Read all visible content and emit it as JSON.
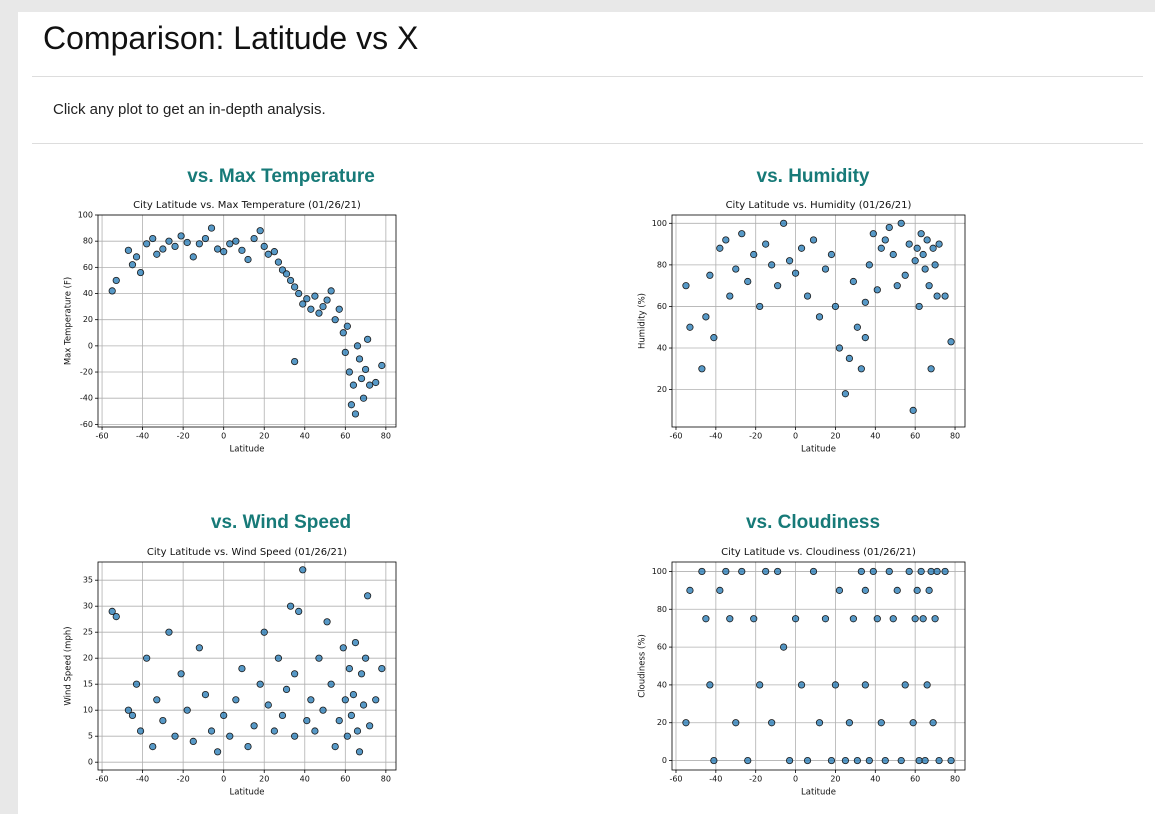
{
  "header": {
    "title": "Comparison: Latitude vs X"
  },
  "intro": "Click any plot to get an in-depth analysis.",
  "chart_data": [
    {
      "type": "scatter",
      "heading": "vs. Max Temperature",
      "title": "City Latitude vs. Max Temperature (01/26/21)",
      "xlabel": "Latitude",
      "ylabel": "Max Temperature (F)",
      "color": "#1f77b4",
      "grid": true,
      "xlim": [
        -62,
        85
      ],
      "xticks": [
        -60,
        -40,
        -20,
        0,
        20,
        40,
        60,
        80
      ],
      "ylim": [
        -62,
        100
      ],
      "yticks": [
        -60,
        -40,
        -20,
        0,
        20,
        40,
        60,
        80,
        100
      ],
      "x": [
        -55,
        -53,
        -47,
        -45,
        -43,
        -41,
        -38,
        -35,
        -33,
        -30,
        -27,
        -24,
        -21,
        -18,
        -15,
        -12,
        -9,
        -6,
        -3,
        0,
        3,
        6,
        9,
        12,
        15,
        18,
        20,
        22,
        25,
        27,
        29,
        31,
        33,
        35,
        35,
        37,
        39,
        41,
        43,
        45,
        47,
        49,
        51,
        53,
        55,
        57,
        59,
        60,
        61,
        62,
        63,
        64,
        65,
        66,
        67,
        68,
        69,
        70,
        71,
        72,
        75,
        78
      ],
      "values": [
        42,
        50,
        73,
        62,
        68,
        56,
        78,
        82,
        70,
        74,
        80,
        76,
        84,
        79,
        68,
        78,
        82,
        90,
        74,
        72,
        78,
        80,
        73,
        66,
        82,
        88,
        76,
        70,
        72,
        64,
        58,
        55,
        50,
        45,
        -12,
        40,
        32,
        36,
        28,
        38,
        25,
        30,
        35,
        42,
        20,
        28,
        10,
        -5,
        15,
        -20,
        -45,
        -30,
        -52,
        0,
        -10,
        -25,
        -40,
        -18,
        5,
        -30,
        -28,
        -15
      ]
    },
    {
      "type": "scatter",
      "heading": "vs. Humidity",
      "title": "City Latitude vs. Humidity (01/26/21)",
      "xlabel": "Latitude",
      "ylabel": "Humidity (%)",
      "color": "#1f77b4",
      "grid": true,
      "xlim": [
        -62,
        85
      ],
      "xticks": [
        -60,
        -40,
        -20,
        0,
        20,
        40,
        60,
        80
      ],
      "ylim": [
        2,
        104
      ],
      "yticks": [
        20,
        40,
        60,
        80,
        100
      ],
      "x": [
        -55,
        -53,
        -47,
        -45,
        -43,
        -41,
        -38,
        -35,
        -33,
        -30,
        -27,
        -24,
        -21,
        -18,
        -15,
        -12,
        -9,
        -6,
        -3,
        0,
        3,
        6,
        9,
        12,
        15,
        18,
        20,
        22,
        25,
        27,
        29,
        31,
        33,
        35,
        35,
        37,
        39,
        41,
        43,
        45,
        47,
        49,
        51,
        53,
        55,
        57,
        59,
        60,
        61,
        62,
        63,
        64,
        65,
        66,
        67,
        68,
        69,
        70,
        71,
        72,
        75,
        78
      ],
      "values": [
        70,
        50,
        30,
        55,
        75,
        45,
        88,
        92,
        65,
        78,
        95,
        72,
        85,
        60,
        90,
        80,
        70,
        100,
        82,
        76,
        88,
        65,
        92,
        55,
        78,
        85,
        60,
        40,
        18,
        35,
        72,
        50,
        30,
        45,
        62,
        80,
        95,
        68,
        88,
        92,
        98,
        85,
        70,
        100,
        75,
        90,
        10,
        82,
        88,
        60,
        95,
        85,
        78,
        92,
        70,
        30,
        88,
        80,
        65,
        90,
        65,
        43
      ]
    },
    {
      "type": "scatter",
      "heading": "vs. Wind Speed",
      "title": "City Latitude vs. Wind Speed (01/26/21)",
      "xlabel": "Latitude",
      "ylabel": "Wind Speed (mph)",
      "color": "#1f77b4",
      "grid": true,
      "xlim": [
        -62,
        85
      ],
      "xticks": [
        -60,
        -40,
        -20,
        0,
        20,
        40,
        60,
        80
      ],
      "ylim": [
        -1.5,
        38.5
      ],
      "yticks": [
        0,
        5,
        10,
        15,
        20,
        25,
        30,
        35
      ],
      "x": [
        -55,
        -53,
        -47,
        -45,
        -43,
        -41,
        -38,
        -35,
        -33,
        -30,
        -27,
        -24,
        -21,
        -18,
        -15,
        -12,
        -9,
        -6,
        -3,
        0,
        3,
        6,
        9,
        12,
        15,
        18,
        20,
        22,
        25,
        27,
        29,
        31,
        33,
        35,
        35,
        37,
        39,
        41,
        43,
        45,
        47,
        49,
        51,
        53,
        55,
        57,
        59,
        60,
        61,
        62,
        63,
        64,
        65,
        66,
        67,
        68,
        69,
        70,
        71,
        72,
        75,
        78
      ],
      "values": [
        29,
        28,
        10,
        9,
        15,
        6,
        20,
        3,
        12,
        8,
        25,
        5,
        17,
        10,
        4,
        22,
        13,
        6,
        2,
        9,
        5,
        12,
        18,
        3,
        7,
        15,
        25,
        11,
        6,
        20,
        9,
        14,
        30,
        5,
        17,
        29,
        37,
        8,
        12,
        6,
        20,
        10,
        27,
        15,
        3,
        8,
        22,
        12,
        5,
        18,
        9,
        13,
        23,
        6,
        2,
        17,
        11,
        20,
        32,
        7,
        12,
        18
      ]
    },
    {
      "type": "scatter",
      "heading": "vs. Cloudiness",
      "title": "City Latitude vs. Cloudiness (01/26/21)",
      "xlabel": "Latitude",
      "ylabel": "Cloudiness (%)",
      "color": "#1f77b4",
      "grid": true,
      "xlim": [
        -62,
        85
      ],
      "xticks": [
        -60,
        -40,
        -20,
        0,
        20,
        40,
        60,
        80
      ],
      "ylim": [
        -5,
        105
      ],
      "yticks": [
        0,
        20,
        40,
        60,
        80,
        100
      ],
      "x": [
        -55,
        -53,
        -47,
        -45,
        -43,
        -41,
        -38,
        -35,
        -33,
        -30,
        -27,
        -24,
        -21,
        -18,
        -15,
        -12,
        -9,
        -6,
        -3,
        0,
        3,
        6,
        9,
        12,
        15,
        18,
        20,
        22,
        25,
        27,
        29,
        31,
        33,
        35,
        35,
        37,
        39,
        41,
        43,
        45,
        47,
        49,
        51,
        53,
        55,
        57,
        59,
        60,
        61,
        62,
        63,
        64,
        65,
        66,
        67,
        68,
        69,
        70,
        71,
        72,
        75,
        78
      ],
      "values": [
        20,
        90,
        100,
        75,
        40,
        0,
        90,
        100,
        75,
        20,
        100,
        0,
        75,
        40,
        100,
        20,
        100,
        60,
        0,
        75,
        40,
        0,
        100,
        20,
        75,
        0,
        40,
        90,
        0,
        20,
        75,
        0,
        100,
        40,
        90,
        0,
        100,
        75,
        20,
        0,
        100,
        75,
        90,
        0,
        40,
        100,
        20,
        75,
        90,
        0,
        100,
        75,
        0,
        40,
        90,
        100,
        20,
        75,
        100,
        0,
        100,
        0
      ]
    }
  ]
}
